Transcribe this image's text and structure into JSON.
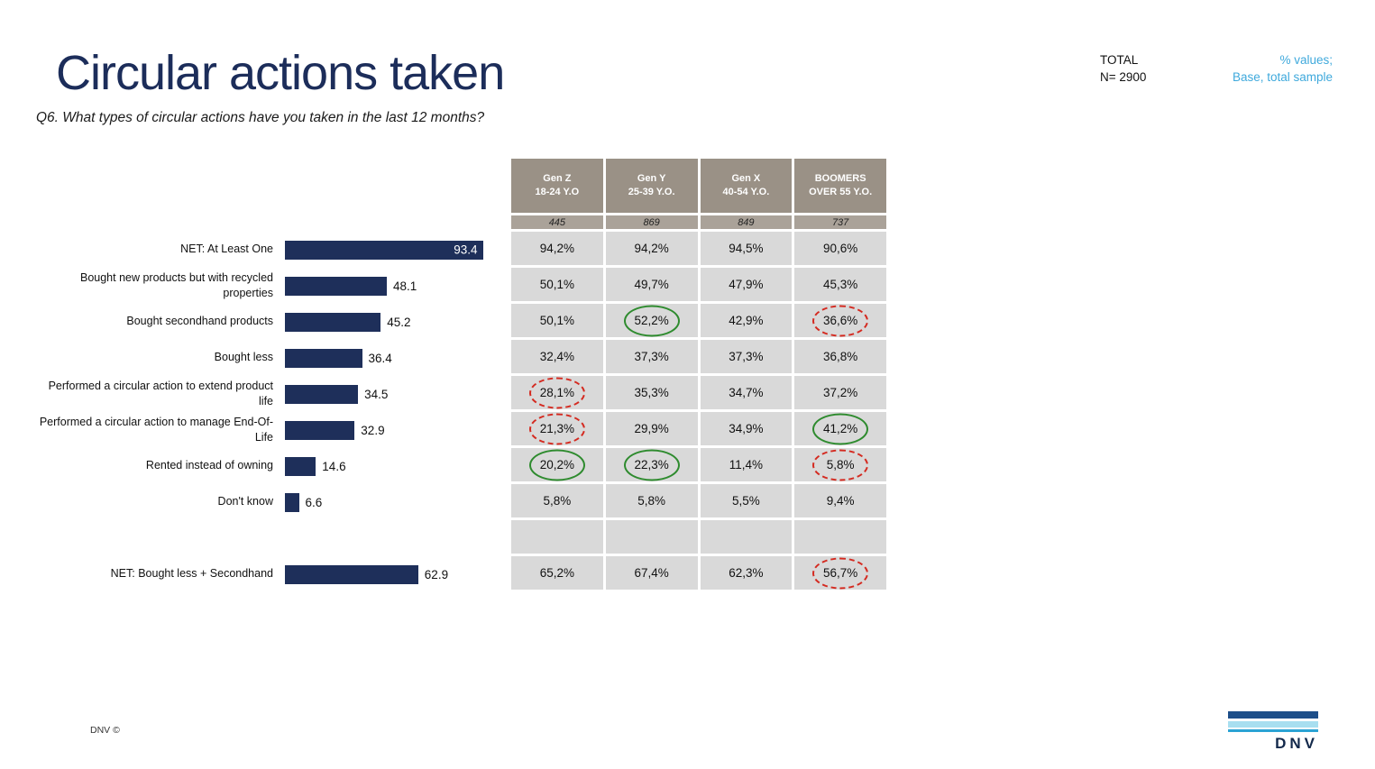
{
  "slide": {
    "title": "Circular actions taken",
    "question": "Q6. What types of circular actions have you taken in the last 12 months?",
    "total_label": "TOTAL",
    "total_n": "N= 2900",
    "values_note_line1": "% values;",
    "values_note_line2": "Base, total sample",
    "footer_text": "DNV ©",
    "logo_text": "DNV"
  },
  "colors": {
    "navy": "#1c2d5a",
    "bar": "#1e2f5a",
    "table_header_bg": "#9a9186",
    "table_base_bg": "#aaa299",
    "table_cell_bg": "#d9d9d9",
    "note_blue": "#3fa9dc",
    "mark_green": "#2e8b2e",
    "mark_red": "#d42a20"
  },
  "chart_data": [
    {
      "type": "bar",
      "orientation": "horizontal",
      "title": "Circular actions taken",
      "categories": [
        "NET: At Least One",
        "Bought new products but with recycled properties",
        "Bought secondhand products",
        "Bought less",
        "Performed a circular action to extend product life",
        "Performed a circular action to manage End-Of-Life",
        "Rented instead of owning",
        "Don't know",
        "NET: Bought less + Secondhand"
      ],
      "values": [
        93.4,
        48.1,
        45.2,
        36.4,
        34.5,
        32.9,
        14.6,
        6.6,
        62.9
      ],
      "value_labels": [
        "93.4",
        "48.1",
        "45.2",
        "36.4",
        "34.5",
        "32.9",
        "14.6",
        "6.6",
        "62.9"
      ],
      "xlim": [
        0,
        100
      ],
      "bar_color": "#1e2f5a",
      "first_value_inside": true,
      "gap_before_last": true,
      "grid": false,
      "legend": false
    },
    {
      "type": "table",
      "columns": [
        {
          "line1": "Gen Z",
          "line2": "18-24 Y.O",
          "base": "445"
        },
        {
          "line1": "Gen Y",
          "line2": "25-39 Y.O.",
          "base": "869"
        },
        {
          "line1": "Gen X",
          "line2": "40-54 Y.O.",
          "base": "849"
        },
        {
          "line1": "BOOMERS",
          "line2": "OVER 55 Y.O.",
          "base": "737"
        }
      ],
      "rows": [
        {
          "cells": [
            "94,2%",
            "94,2%",
            "94,5%",
            "90,6%"
          ],
          "marks": [
            "",
            "",
            "",
            ""
          ]
        },
        {
          "cells": [
            "50,1%",
            "49,7%",
            "47,9%",
            "45,3%"
          ],
          "marks": [
            "",
            "",
            "",
            ""
          ]
        },
        {
          "cells": [
            "50,1%",
            "52,2%",
            "42,9%",
            "36,6%"
          ],
          "marks": [
            "",
            "green",
            "",
            "red"
          ]
        },
        {
          "cells": [
            "32,4%",
            "37,3%",
            "37,3%",
            "36,8%"
          ],
          "marks": [
            "",
            "",
            "",
            ""
          ]
        },
        {
          "cells": [
            "28,1%",
            "35,3%",
            "34,7%",
            "37,2%"
          ],
          "marks": [
            "red",
            "",
            "",
            ""
          ]
        },
        {
          "cells": [
            "21,3%",
            "29,9%",
            "34,9%",
            "41,2%"
          ],
          "marks": [
            "red",
            "",
            "",
            "green"
          ]
        },
        {
          "cells": [
            "20,2%",
            "22,3%",
            "11,4%",
            "5,8%"
          ],
          "marks": [
            "green",
            "green",
            "",
            "red"
          ]
        },
        {
          "cells": [
            "5,8%",
            "5,8%",
            "5,5%",
            "9,4%"
          ],
          "marks": [
            "",
            "",
            "",
            ""
          ]
        },
        {
          "cells": [
            "",
            "",
            "",
            ""
          ],
          "marks": [
            "",
            "",
            "",
            ""
          ]
        },
        {
          "cells": [
            "65,2%",
            "67,4%",
            "62,3%",
            "56,7%"
          ],
          "marks": [
            "",
            "",
            "",
            "red"
          ]
        }
      ]
    }
  ]
}
